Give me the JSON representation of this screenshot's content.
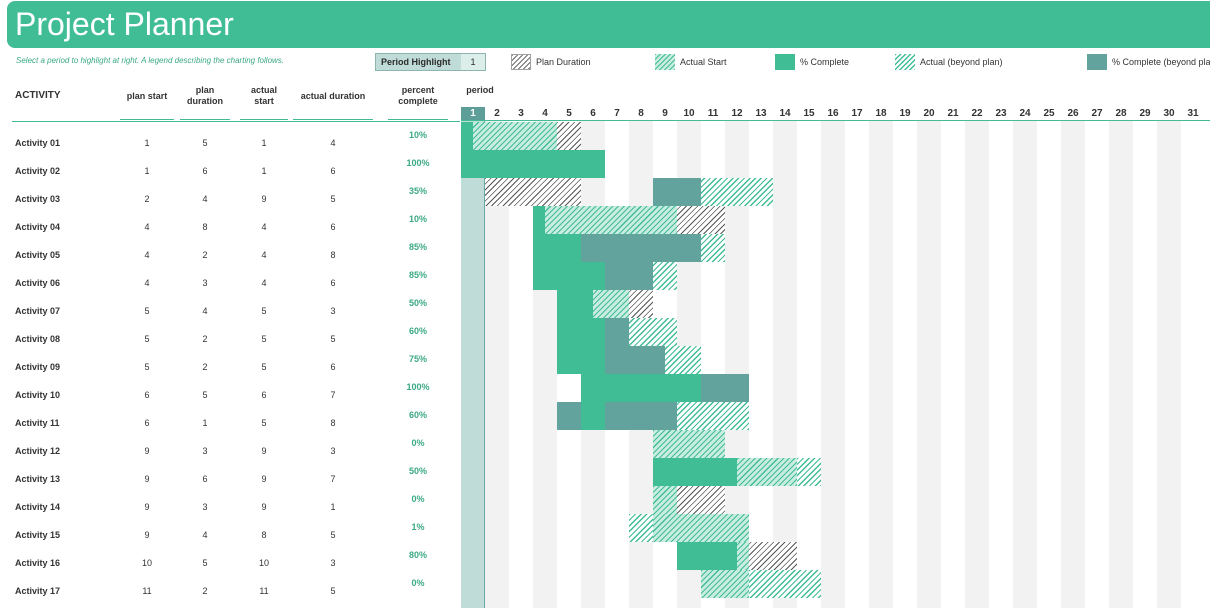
{
  "title": "Project Planner",
  "subtitle": "Select a period to highlight at right.  A legend describing the charting follows.",
  "period_highlight": {
    "label": "Period Highlight",
    "value": "1"
  },
  "legend": [
    {
      "key": "plan",
      "label": "Plan Duration"
    },
    {
      "key": "actual",
      "label": "Actual Start"
    },
    {
      "key": "pct",
      "label": "% Complete"
    },
    {
      "key": "beyond",
      "label": "Actual (beyond plan)"
    },
    {
      "key": "pctb",
      "label": "% Complete (beyond plan)"
    }
  ],
  "headers": {
    "activity": "ACTIVITY",
    "plan_start": "plan start",
    "plan_duration": "plan duration",
    "actual_start": "actual start",
    "actual_duration": "actual duration",
    "percent_complete": "percent complete",
    "period": "period"
  },
  "colors": {
    "accent": "#41bd96",
    "accent_dark": "#63a39d",
    "highlight_column": "#c0dcd8",
    "stripe_gray": "#f2f2f2"
  },
  "periods": [
    "1",
    "2",
    "3",
    "4",
    "5",
    "6",
    "7",
    "8",
    "9",
    "10",
    "11",
    "12",
    "13",
    "14",
    "15",
    "16",
    "17",
    "18",
    "19",
    "20",
    "21",
    "22",
    "23",
    "24",
    "25",
    "26",
    "27",
    "28",
    "29",
    "30",
    "31"
  ],
  "activities": [
    {
      "name": "Activity 01",
      "plan_start": 1,
      "plan_duration": 5,
      "actual_start": 1,
      "actual_duration": 4,
      "percent": "10%"
    },
    {
      "name": "Activity 02",
      "plan_start": 1,
      "plan_duration": 6,
      "actual_start": 1,
      "actual_duration": 6,
      "percent": "100%"
    },
    {
      "name": "Activity 03",
      "plan_start": 2,
      "plan_duration": 4,
      "actual_start": 9,
      "actual_duration": 5,
      "percent": "35%"
    },
    {
      "name": "Activity 04",
      "plan_start": 4,
      "plan_duration": 8,
      "actual_start": 4,
      "actual_duration": 6,
      "percent": "10%"
    },
    {
      "name": "Activity 05",
      "plan_start": 4,
      "plan_duration": 2,
      "actual_start": 4,
      "actual_duration": 8,
      "percent": "85%"
    },
    {
      "name": "Activity 06",
      "plan_start": 4,
      "plan_duration": 3,
      "actual_start": 4,
      "actual_duration": 6,
      "percent": "85%"
    },
    {
      "name": "Activity 07",
      "plan_start": 5,
      "plan_duration": 4,
      "actual_start": 5,
      "actual_duration": 3,
      "percent": "50%"
    },
    {
      "name": "Activity 08",
      "plan_start": 5,
      "plan_duration": 2,
      "actual_start": 5,
      "actual_duration": 5,
      "percent": "60%"
    },
    {
      "name": "Activity 09",
      "plan_start": 5,
      "plan_duration": 2,
      "actual_start": 5,
      "actual_duration": 6,
      "percent": "75%"
    },
    {
      "name": "Activity 10",
      "plan_start": 6,
      "plan_duration": 5,
      "actual_start": 6,
      "actual_duration": 7,
      "percent": "100%"
    },
    {
      "name": "Activity 11",
      "plan_start": 6,
      "plan_duration": 1,
      "actual_start": 5,
      "actual_duration": 8,
      "percent": "60%"
    },
    {
      "name": "Activity 12",
      "plan_start": 9,
      "plan_duration": 3,
      "actual_start": 9,
      "actual_duration": 3,
      "percent": "0%"
    },
    {
      "name": "Activity 13",
      "plan_start": 9,
      "plan_duration": 6,
      "actual_start": 9,
      "actual_duration": 7,
      "percent": "50%"
    },
    {
      "name": "Activity 14",
      "plan_start": 9,
      "plan_duration": 3,
      "actual_start": 9,
      "actual_duration": 1,
      "percent": "0%"
    },
    {
      "name": "Activity 15",
      "plan_start": 9,
      "plan_duration": 4,
      "actual_start": 8,
      "actual_duration": 5,
      "percent": "1%"
    },
    {
      "name": "Activity 16",
      "plan_start": 10,
      "plan_duration": 5,
      "actual_start": 10,
      "actual_duration": 3,
      "percent": "80%"
    },
    {
      "name": "Activity 17",
      "plan_start": 11,
      "plan_duration": 2,
      "actual_start": 11,
      "actual_duration": 5,
      "percent": "0%"
    }
  ]
}
